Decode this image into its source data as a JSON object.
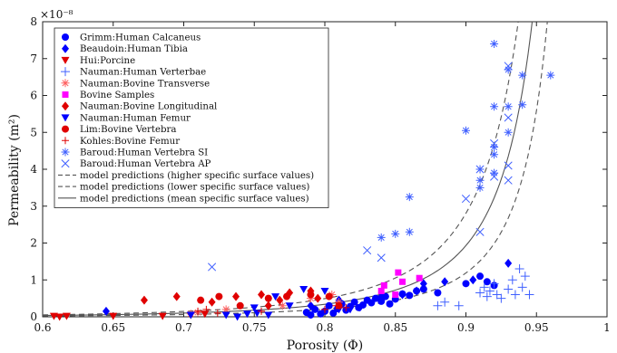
{
  "chart_data": {
    "type": "scatter",
    "title": "",
    "xlabel": "Porosity (Φ)",
    "ylabel": "Permeability (m²)",
    "ylabel_main": "Permeability",
    "ylabel_unit": "(m²)",
    "y_multiplier": "×10⁻⁸",
    "y_scale": 1e-08,
    "xlim": [
      0.6,
      1.0
    ],
    "ylim": [
      0,
      8
    ],
    "xticks": [
      0.6,
      0.65,
      0.7,
      0.75,
      0.8,
      0.85,
      0.9,
      0.95,
      1.0
    ],
    "xtick_labels": [
      "0.6",
      "0.65",
      "0.7",
      "0.75",
      "0.8",
      "0.85",
      "0.9",
      "0.95",
      "1"
    ],
    "yticks": [
      0,
      1,
      2,
      3,
      4,
      5,
      6,
      7,
      8
    ],
    "ytick_labels": [
      "0",
      "1",
      "2",
      "3",
      "4",
      "5",
      "6",
      "7",
      "8"
    ],
    "grid": false,
    "legend_position": "top-left",
    "series": [
      {
        "name": "Grimm:Human Calcaneus",
        "marker": "circle",
        "color": "#0000ff",
        "points": [
          [
            0.787,
            0.12
          ],
          [
            0.79,
            0.05
          ],
          [
            0.793,
            0.2
          ],
          [
            0.797,
            0.08
          ],
          [
            0.8,
            0.15
          ],
          [
            0.803,
            0.3
          ],
          [
            0.806,
            0.1
          ],
          [
            0.809,
            0.22
          ],
          [
            0.812,
            0.35
          ],
          [
            0.815,
            0.18
          ],
          [
            0.818,
            0.28
          ],
          [
            0.821,
            0.4
          ],
          [
            0.824,
            0.25
          ],
          [
            0.827,
            0.32
          ],
          [
            0.83,
            0.45
          ],
          [
            0.833,
            0.38
          ],
          [
            0.836,
            0.5
          ],
          [
            0.84,
            0.42
          ],
          [
            0.843,
            0.55
          ],
          [
            0.846,
            0.35
          ],
          [
            0.85,
            0.48
          ],
          [
            0.855,
            0.62
          ],
          [
            0.86,
            0.58
          ],
          [
            0.865,
            0.7
          ],
          [
            0.87,
            0.75
          ],
          [
            0.88,
            0.65
          ],
          [
            0.9,
            0.9
          ],
          [
            0.91,
            1.1
          ],
          [
            0.915,
            0.95
          ],
          [
            0.92,
            0.85
          ]
        ]
      },
      {
        "name": "Beaudoin:Human Tibia",
        "marker": "diamond",
        "color": "#0000ff",
        "points": [
          [
            0.645,
            0.15
          ],
          [
            0.79,
            0.3
          ],
          [
            0.81,
            0.45
          ],
          [
            0.84,
            0.55
          ],
          [
            0.855,
            0.6
          ],
          [
            0.865,
            0.7
          ],
          [
            0.87,
            0.9
          ],
          [
            0.885,
            0.95
          ],
          [
            0.905,
            1.0
          ],
          [
            0.93,
            1.45
          ]
        ]
      },
      {
        "name": "Hui:Porcine",
        "marker": "triangle-down",
        "color": "#e00000",
        "points": [
          [
            0.608,
            0.02
          ],
          [
            0.612,
            0.0
          ],
          [
            0.617,
            0.02
          ],
          [
            0.65,
            0.02
          ],
          [
            0.685,
            0.02
          ],
          [
            0.705,
            0.05
          ],
          [
            0.715,
            0.08
          ]
        ]
      },
      {
        "name": "Nauman:Human Verterbae",
        "marker": "plus",
        "color": "#4060ff",
        "points": [
          [
            0.88,
            0.3
          ],
          [
            0.885,
            0.4
          ],
          [
            0.895,
            0.3
          ],
          [
            0.91,
            0.65
          ],
          [
            0.913,
            0.8
          ],
          [
            0.915,
            0.55
          ],
          [
            0.917,
            0.7
          ],
          [
            0.92,
            0.9
          ],
          [
            0.922,
            0.6
          ],
          [
            0.925,
            0.5
          ],
          [
            0.93,
            0.75
          ],
          [
            0.933,
            1.0
          ],
          [
            0.935,
            0.6
          ],
          [
            0.938,
            1.3
          ],
          [
            0.94,
            0.8
          ],
          [
            0.942,
            1.1
          ],
          [
            0.945,
            0.6
          ]
        ]
      },
      {
        "name": "Nauman:Bovine Transverse",
        "marker": "asterisk",
        "color": "#ff6060",
        "points": [
          [
            0.705,
            0.08
          ],
          [
            0.71,
            0.12
          ],
          [
            0.73,
            0.2
          ],
          [
            0.77,
            0.3
          ],
          [
            0.79,
            0.5
          ],
          [
            0.805,
            0.6
          ],
          [
            0.81,
            0.4
          ]
        ]
      },
      {
        "name": "Bovine Samples",
        "marker": "square",
        "color": "#ff00ff",
        "points": [
          [
            0.84,
            0.7
          ],
          [
            0.842,
            0.85
          ],
          [
            0.85,
            0.6
          ],
          [
            0.852,
            1.2
          ],
          [
            0.855,
            0.95
          ],
          [
            0.867,
            1.05
          ]
        ]
      },
      {
        "name": "Nauman:Bovine Longitudinal",
        "marker": "diamond",
        "color": "#e00000",
        "points": [
          [
            0.672,
            0.45
          ],
          [
            0.695,
            0.55
          ],
          [
            0.72,
            0.4
          ],
          [
            0.737,
            0.55
          ],
          [
            0.755,
            0.6
          ],
          [
            0.76,
            0.3
          ],
          [
            0.768,
            0.45
          ],
          [
            0.775,
            0.65
          ],
          [
            0.79,
            0.7
          ],
          [
            0.795,
            0.5
          ]
        ]
      },
      {
        "name": "Nauman:Human Femur",
        "marker": "triangle-down",
        "color": "#0000ff",
        "points": [
          [
            0.705,
            0.05
          ],
          [
            0.73,
            0.05
          ],
          [
            0.738,
            0.0
          ],
          [
            0.745,
            0.08
          ],
          [
            0.75,
            0.25
          ],
          [
            0.752,
            0.1
          ],
          [
            0.76,
            0.05
          ],
          [
            0.765,
            0.55
          ],
          [
            0.775,
            0.3
          ],
          [
            0.785,
            0.75
          ],
          [
            0.8,
            0.7
          ],
          [
            0.81,
            0.2
          ],
          [
            0.818,
            0.2
          ],
          [
            0.825,
            0.25
          ]
        ]
      },
      {
        "name": "Lim:Bovine Vertebra",
        "marker": "circle",
        "color": "#e00000",
        "points": [
          [
            0.712,
            0.45
          ],
          [
            0.725,
            0.55
          ],
          [
            0.74,
            0.3
          ],
          [
            0.76,
            0.5
          ],
          [
            0.773,
            0.55
          ],
          [
            0.79,
            0.6
          ],
          [
            0.803,
            0.55
          ],
          [
            0.81,
            0.3
          ]
        ]
      },
      {
        "name": "Kohles:Bovine Femur",
        "marker": "plus-small",
        "color": "#e00000",
        "points": [
          [
            0.71,
            0.15
          ],
          [
            0.716,
            0.2
          ],
          [
            0.724,
            0.1
          ],
          [
            0.755,
            0.15
          ],
          [
            0.8,
            0.2
          ],
          [
            0.808,
            0.3
          ],
          [
            0.815,
            0.25
          ]
        ]
      },
      {
        "name": "Baroud:Human Vertebra SI",
        "marker": "asterisk",
        "color": "#4060ff",
        "points": [
          [
            0.84,
            2.15
          ],
          [
            0.85,
            2.25
          ],
          [
            0.86,
            2.3
          ],
          [
            0.86,
            3.25
          ],
          [
            0.9,
            5.05
          ],
          [
            0.91,
            3.5
          ],
          [
            0.91,
            3.7
          ],
          [
            0.91,
            4.0
          ],
          [
            0.92,
            7.4
          ],
          [
            0.92,
            5.7
          ],
          [
            0.92,
            4.4
          ],
          [
            0.92,
            4.6
          ],
          [
            0.92,
            3.9
          ],
          [
            0.93,
            6.7
          ],
          [
            0.93,
            5.7
          ],
          [
            0.93,
            5.0
          ],
          [
            0.94,
            5.75
          ],
          [
            0.94,
            6.55
          ],
          [
            0.96,
            6.55
          ]
        ]
      },
      {
        "name": "Baroud:Human Vertebra AP",
        "marker": "x",
        "color": "#4060ff",
        "points": [
          [
            0.72,
            1.35
          ],
          [
            0.83,
            1.8
          ],
          [
            0.84,
            1.6
          ],
          [
            0.9,
            3.2
          ],
          [
            0.91,
            2.3
          ],
          [
            0.91,
            4.0
          ],
          [
            0.92,
            3.8
          ],
          [
            0.92,
            4.7
          ],
          [
            0.93,
            3.7
          ],
          [
            0.93,
            4.1
          ],
          [
            0.93,
            5.4
          ],
          [
            0.93,
            6.8
          ]
        ]
      }
    ],
    "curves": [
      {
        "name": "model predictions (higher specific surface values)",
        "style": "dashed",
        "color": "#555555",
        "k": 0.0163
      },
      {
        "name": "model predictions (lower specific surface values)",
        "style": "dashed",
        "color": "#555555",
        "k": 0.0385
      },
      {
        "name": "model predictions (mean specific surface values)",
        "style": "solid",
        "color": "#555555",
        "k": 0.0265
      }
    ]
  }
}
